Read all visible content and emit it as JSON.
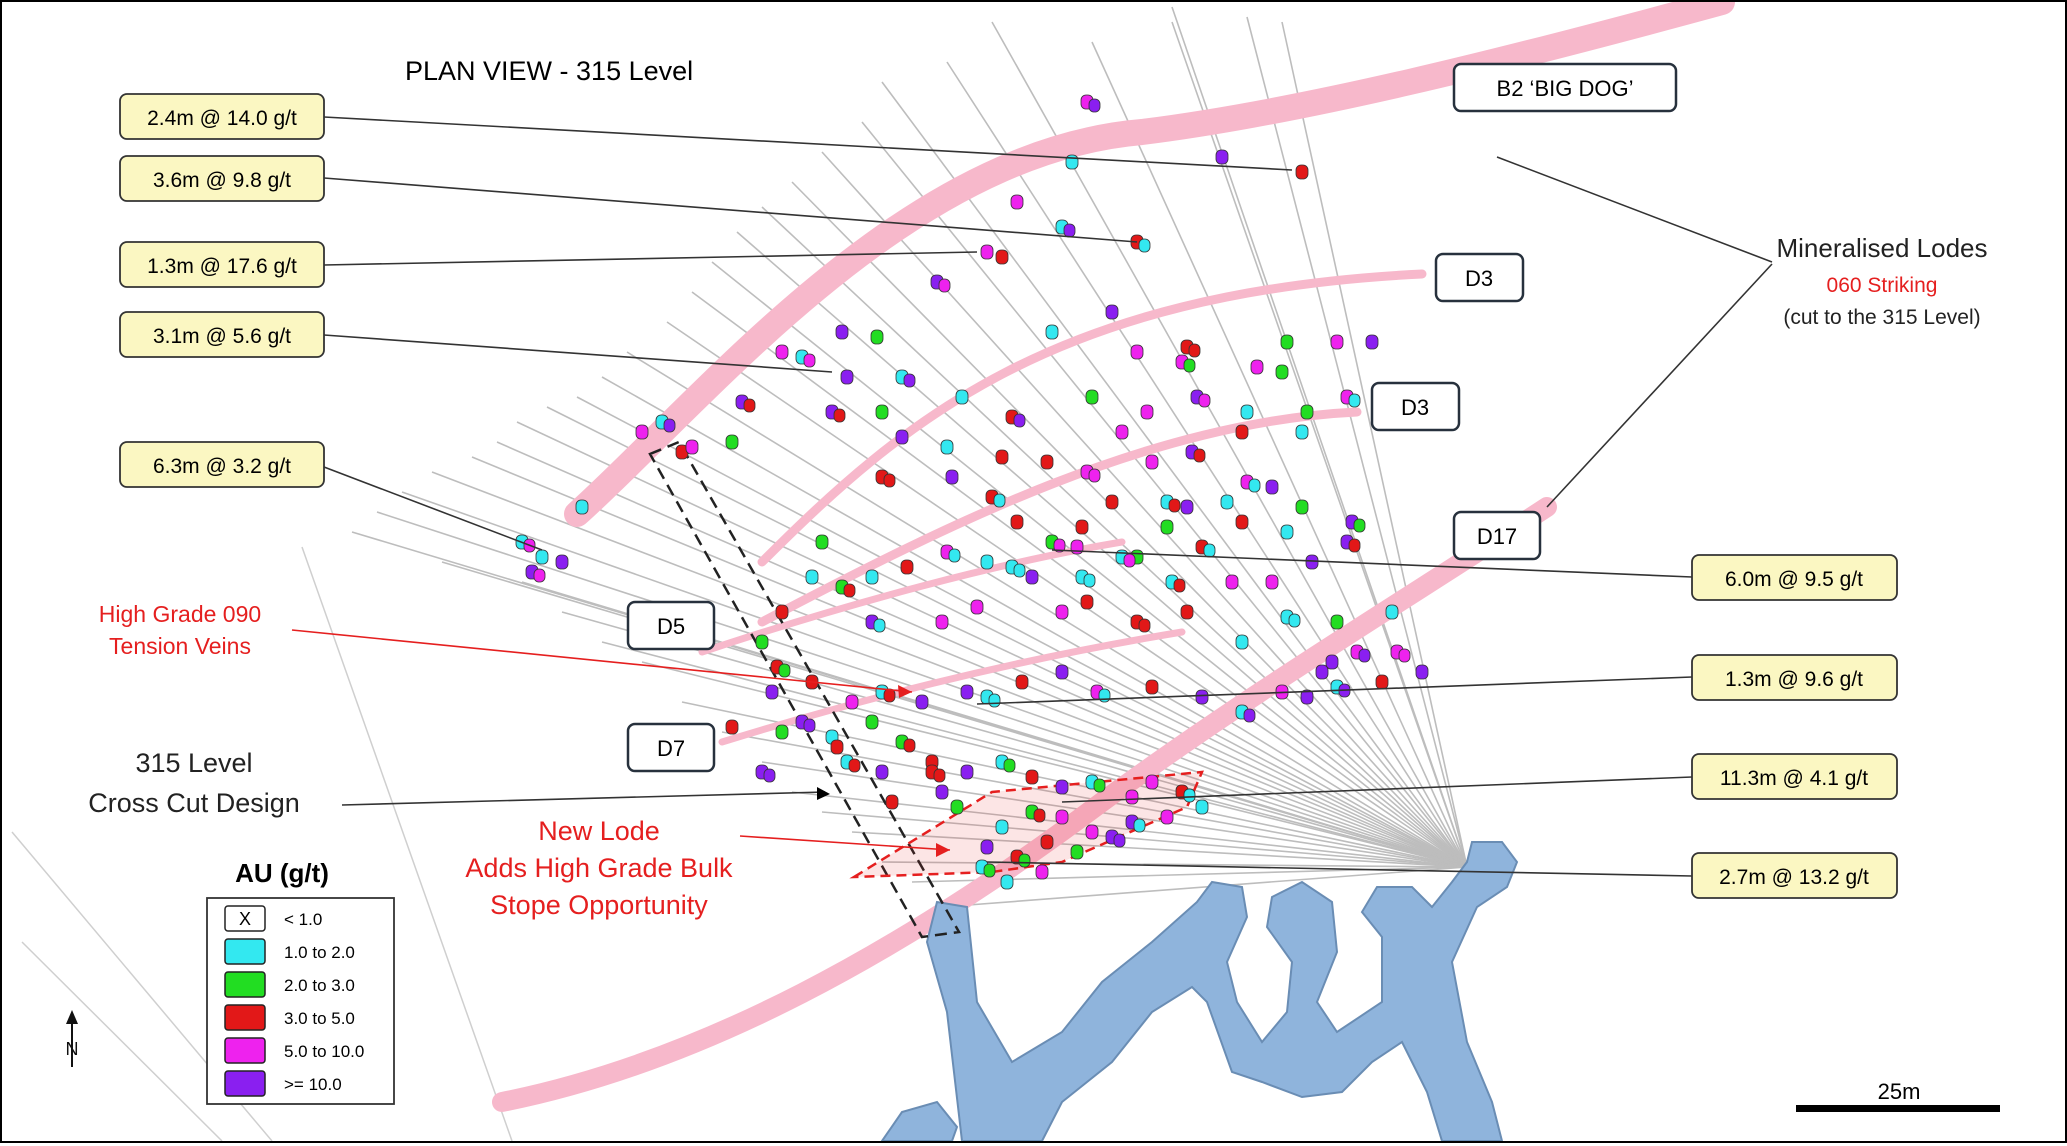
{
  "title": "PLAN VIEW - 315 Level",
  "callouts_left": [
    "2.4m @ 14.0 g/t",
    "3.6m @ 9.8 g/t",
    "1.3m @ 17.6 g/t",
    "3.1m @ 5.6 g/t",
    "6.3m @ 3.2 g/t"
  ],
  "callouts_right": [
    "6.0m @ 9.5 g/t",
    "1.3m @ 9.6 g/t",
    "11.3m @ 4.1 g/t",
    "2.7m @ 13.2 g/t"
  ],
  "lode_labels": {
    "b2": "B2 ‘BIG DOG’",
    "d3a": "D3",
    "d3b": "D3",
    "d17": "D17",
    "d5": "D5",
    "d7": "D7"
  },
  "mineralised": {
    "line1": "Mineralised Lodes",
    "line2": "060 Striking",
    "line3": "(cut to the 315 Level)"
  },
  "tension": {
    "line1": "High Grade 090",
    "line2": "Tension Veins"
  },
  "crosscut": {
    "line1": "315 Level",
    "line2": "Cross Cut Design"
  },
  "newlode": {
    "line1": "New Lode",
    "line2": "Adds High Grade Bulk",
    "line3": "Stope Opportunity"
  },
  "legend": {
    "title": "AU (g/t)",
    "items": [
      {
        "label": "< 1.0",
        "color": "#ffffff",
        "mark": "X"
      },
      {
        "label": "1.0 to 2.0",
        "color": "#33e8f0",
        "mark": ""
      },
      {
        "label": "2.0 to 3.0",
        "color": "#22dd22",
        "mark": ""
      },
      {
        "label": "3.0 to 5.0",
        "color": "#e21818",
        "mark": ""
      },
      {
        "label": "5.0 to 10.0",
        "color": "#ee22ee",
        "mark": ""
      },
      {
        "label": ">= 10.0",
        "color": "#8a1ff0",
        "mark": ""
      }
    ]
  },
  "north": "N",
  "scale": "25m",
  "colors": {
    "lode": "#f7b8cb",
    "workings": "#8fb4dc",
    "callout_fill": "#fbf7c2",
    "red_text": "#e51f1f"
  }
}
